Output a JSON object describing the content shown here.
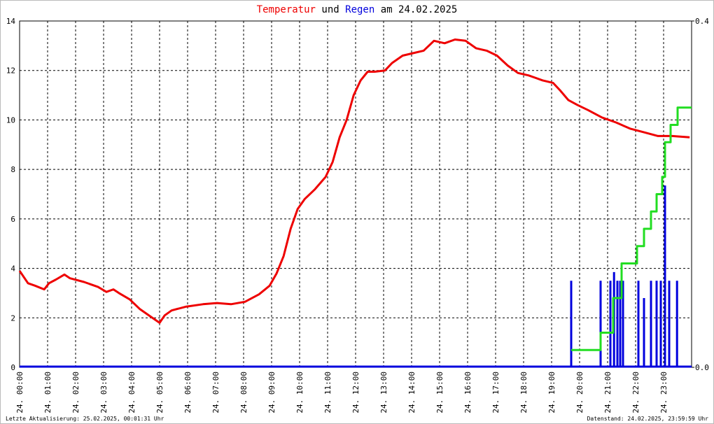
{
  "chart_data": {
    "type": "combo",
    "title": [
      "Temperatur",
      "und",
      "Regen",
      "am 24.02.2025"
    ],
    "footer_left": "Letzte Aktualisierung: 25.02.2025, 00:01:31 Uhr",
    "footer_right": "Datenstand: 24.02.2025, 23:59:59 Uhr",
    "xlim": [
      0,
      24
    ],
    "xticks": [
      {
        "value": 0,
        "label": "24. 00:00"
      },
      {
        "value": 1,
        "label": "24. 01:00"
      },
      {
        "value": 2,
        "label": "24. 02:00"
      },
      {
        "value": 3,
        "label": "24. 03:00"
      },
      {
        "value": 4,
        "label": "24. 04:00"
      },
      {
        "value": 5,
        "label": "24. 05:00"
      },
      {
        "value": 6,
        "label": "24. 06:00"
      },
      {
        "value": 7,
        "label": "24. 07:00"
      },
      {
        "value": 8,
        "label": "24. 08:00"
      },
      {
        "value": 9,
        "label": "24. 09:00"
      },
      {
        "value": 10,
        "label": "24. 10:00"
      },
      {
        "value": 11,
        "label": "24. 11:00"
      },
      {
        "value": 12,
        "label": "24. 12:00"
      },
      {
        "value": 13,
        "label": "24. 13:00"
      },
      {
        "value": 14,
        "label": "24. 14:00"
      },
      {
        "value": 15,
        "label": "24. 15:00"
      },
      {
        "value": 16,
        "label": "24. 16:00"
      },
      {
        "value": 17,
        "label": "24. 17:00"
      },
      {
        "value": 18,
        "label": "24. 18:00"
      },
      {
        "value": 19,
        "label": "24. 19:00"
      },
      {
        "value": 20,
        "label": "24. 20:00"
      },
      {
        "value": 21,
        "label": "24. 21:00"
      },
      {
        "value": 22,
        "label": "24. 22:00"
      },
      {
        "value": 23,
        "label": "24. 23:00"
      }
    ],
    "ylim": [
      0,
      14
    ],
    "yticks": [
      0,
      2,
      4,
      6,
      8,
      10,
      12,
      14
    ],
    "y2lim": [
      0,
      0.4
    ],
    "y2ticks": [
      {
        "value": 0,
        "label": "0.0"
      },
      {
        "value": 0.4,
        "label": "0.4"
      }
    ],
    "grid": true,
    "series": [
      {
        "kind": "line",
        "color": "#ee0000",
        "x": [
          0,
          0.3,
          0.55,
          0.88,
          1.05,
          1.3,
          1.6,
          1.8,
          2.3,
          2.8,
          3.1,
          3.35,
          3.55,
          3.93,
          4.3,
          4.68,
          5.0,
          5.18,
          5.43,
          5.93,
          6.55,
          7.05,
          7.55,
          8.05,
          8.55,
          8.93,
          9.18,
          9.43,
          9.68,
          9.93,
          10.18,
          10.55,
          10.93,
          11.18,
          11.43,
          11.68,
          11.93,
          12.18,
          12.43,
          12.68,
          13.05,
          13.3,
          13.68,
          14.05,
          14.43,
          14.8,
          15.18,
          15.55,
          15.93,
          16.3,
          16.68,
          17.05,
          17.43,
          17.8,
          18.18,
          18.68,
          19.05,
          19.3,
          19.6,
          19.93,
          20.3,
          20.8,
          21.3,
          21.8,
          22.3,
          22.8,
          23.3,
          23.93
        ],
        "values": [
          3.9,
          3.4,
          3.3,
          3.15,
          3.4,
          3.55,
          3.75,
          3.6,
          3.45,
          3.25,
          3.05,
          3.15,
          3.0,
          2.75,
          2.35,
          2.05,
          1.8,
          2.1,
          2.3,
          2.45,
          2.55,
          2.6,
          2.55,
          2.65,
          2.95,
          3.3,
          3.8,
          4.5,
          5.6,
          6.4,
          6.8,
          7.2,
          7.7,
          8.3,
          9.3,
          10.0,
          11.0,
          11.6,
          11.95,
          11.95,
          12.0,
          12.3,
          12.6,
          12.7,
          12.8,
          13.2,
          13.1,
          13.25,
          13.2,
          12.9,
          12.8,
          12.6,
          12.2,
          11.9,
          11.8,
          11.6,
          11.5,
          11.2,
          10.8,
          10.6,
          10.4,
          10.1,
          9.9,
          9.65,
          9.5,
          9.35,
          9.35,
          9.3
        ]
      },
      {
        "kind": "bar",
        "axis": "y2",
        "color": "#0000dd",
        "x": [
          19.7,
          20.75,
          21.1,
          21.23,
          21.35,
          21.45,
          21.55,
          22.1,
          22.3,
          22.55,
          22.75,
          22.9,
          23.05,
          23.2,
          23.48
        ],
        "values": [
          0.1,
          0.1,
          0.1,
          0.11,
          0.1,
          0.1,
          0.1,
          0.1,
          0.08,
          0.1,
          0.1,
          0.1,
          0.21,
          0.1,
          0.1
        ]
      },
      {
        "kind": "line",
        "axis": "y2",
        "color": "#22dd22",
        "x": [
          19.7,
          20.75,
          20.75,
          21.2,
          21.2,
          21.5,
          21.5,
          22.05,
          22.05,
          22.3,
          22.3,
          22.55,
          22.55,
          22.75,
          22.75,
          22.95,
          22.95,
          23.05,
          23.05,
          23.25,
          23.25,
          23.5,
          23.5,
          24
        ],
        "values": [
          0.02,
          0.02,
          0.04,
          0.04,
          0.08,
          0.08,
          0.12,
          0.12,
          0.14,
          0.14,
          0.16,
          0.16,
          0.18,
          0.18,
          0.2,
          0.2,
          0.22,
          0.22,
          0.26,
          0.26,
          0.28,
          0.28,
          0.3,
          0.3
        ]
      }
    ]
  }
}
